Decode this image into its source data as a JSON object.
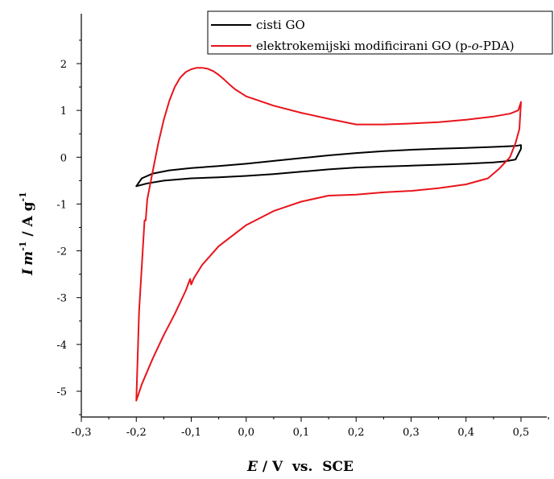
{
  "chart_data": {
    "type": "line",
    "title": "",
    "xlabel_italic": "E",
    "xlabel_rest": " / V  vs.  SCE",
    "ylabel_parts": {
      "I": "I",
      "m": "m",
      "exp": "-1",
      "unit": " / A g",
      "unit_exp": "-1"
    },
    "xlim": [
      -0.3,
      0.55
    ],
    "ylim": [
      -5.5,
      2.6
    ],
    "xticks": [
      -0.3,
      -0.2,
      -0.1,
      0.0,
      0.1,
      0.2,
      0.3,
      0.4,
      0.5
    ],
    "xtick_labels": [
      "-0,3",
      "-0,2",
      "-0,1",
      "0,0",
      "0,1",
      "0,2",
      "0,3",
      "0,4",
      "0,5"
    ],
    "yticks": [
      -5,
      -4,
      -3,
      -2,
      -1,
      0,
      1,
      2
    ],
    "ytick_labels": [
      "-5",
      "-4",
      "-3",
      "-2",
      "-1",
      "0",
      "1",
      "2"
    ],
    "grid": false,
    "legend_position": "top-right",
    "series": [
      {
        "name": "cisti GO",
        "color": "#000000",
        "x": [
          -0.2,
          -0.19,
          -0.17,
          -0.14,
          -0.1,
          -0.05,
          0.0,
          0.05,
          0.1,
          0.15,
          0.2,
          0.25,
          0.3,
          0.35,
          0.4,
          0.45,
          0.49,
          0.5,
          0.5,
          0.49,
          0.47,
          0.45,
          0.4,
          0.35,
          0.3,
          0.25,
          0.2,
          0.15,
          0.1,
          0.05,
          0.0,
          -0.05,
          -0.1,
          -0.15,
          -0.18,
          -0.2
        ],
        "y": [
          -0.62,
          -0.45,
          -0.35,
          -0.28,
          -0.23,
          -0.19,
          -0.14,
          -0.08,
          -0.02,
          0.04,
          0.09,
          0.13,
          0.16,
          0.18,
          0.2,
          0.22,
          0.24,
          0.26,
          0.18,
          -0.05,
          -0.09,
          -0.11,
          -0.14,
          -0.16,
          -0.18,
          -0.2,
          -0.22,
          -0.26,
          -0.31,
          -0.36,
          -0.4,
          -0.43,
          -0.45,
          -0.5,
          -0.56,
          -0.62
        ]
      },
      {
        "name": "elektrokemijski modificirani GO (p-o-PDA)",
        "name_parts": [
          "elektrokemijski modificirani GO (p-",
          "o",
          "-PDA)"
        ],
        "color": "#e8141b",
        "x": [
          -0.2,
          -0.195,
          -0.185,
          -0.183,
          -0.18,
          -0.17,
          -0.16,
          -0.15,
          -0.14,
          -0.13,
          -0.12,
          -0.11,
          -0.1,
          -0.09,
          -0.08,
          -0.07,
          -0.06,
          -0.05,
          -0.04,
          -0.03,
          -0.02,
          0.0,
          0.05,
          0.1,
          0.15,
          0.2,
          0.25,
          0.3,
          0.35,
          0.4,
          0.45,
          0.48,
          0.495,
          0.5,
          0.497,
          0.49,
          0.48,
          0.46,
          0.44,
          0.4,
          0.35,
          0.3,
          0.25,
          0.2,
          0.15,
          0.1,
          0.05,
          0.0,
          -0.05,
          -0.08,
          -0.095,
          -0.1,
          -0.102,
          -0.11,
          -0.13,
          -0.15,
          -0.17,
          -0.19,
          -0.2
        ],
        "y": [
          -5.2,
          -3.3,
          -1.35,
          -1.35,
          -0.9,
          -0.3,
          0.3,
          0.8,
          1.2,
          1.5,
          1.7,
          1.82,
          1.88,
          1.91,
          1.91,
          1.89,
          1.84,
          1.76,
          1.66,
          1.55,
          1.45,
          1.3,
          1.1,
          0.95,
          0.82,
          0.7,
          0.7,
          0.72,
          0.75,
          0.8,
          0.87,
          0.93,
          1.0,
          1.18,
          0.6,
          0.3,
          0.0,
          -0.25,
          -0.45,
          -0.58,
          -0.66,
          -0.72,
          -0.75,
          -0.8,
          -0.82,
          -0.95,
          -1.15,
          -1.45,
          -1.9,
          -2.3,
          -2.58,
          -2.72,
          -2.6,
          -2.85,
          -3.35,
          -3.8,
          -4.3,
          -4.85,
          -5.2
        ]
      }
    ]
  }
}
